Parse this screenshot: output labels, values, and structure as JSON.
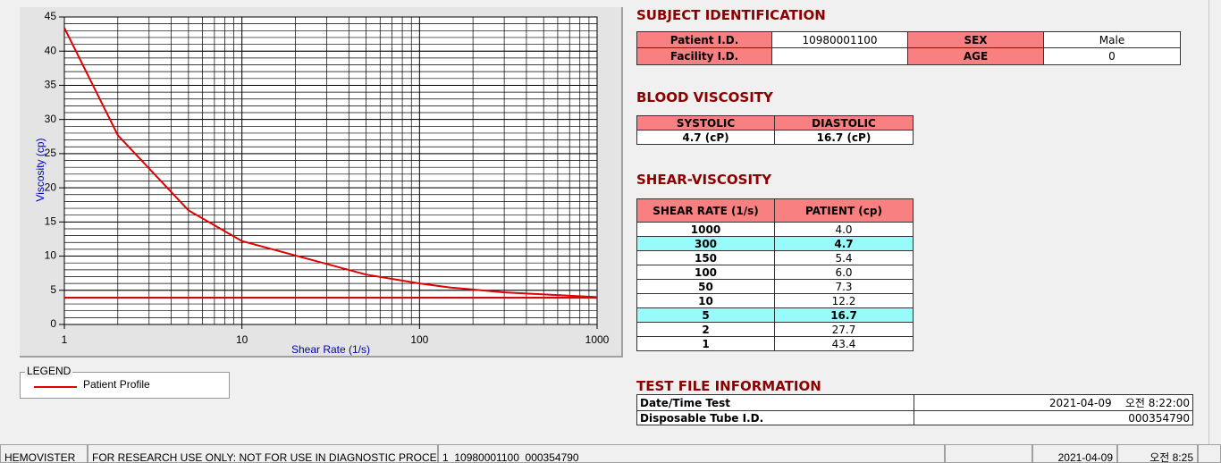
{
  "chart_data": {
    "type": "line",
    "x_label": "Shear Rate (1/s)",
    "y_label": "Viscosity (cp)",
    "log_x": true,
    "x": [
      1,
      2,
      5,
      10,
      50,
      100,
      150,
      300,
      1000
    ],
    "series": [
      {
        "name": "Patient Profile",
        "color": "#e00000",
        "values": [
          43.4,
          27.7,
          16.7,
          12.2,
          7.3,
          6.0,
          5.4,
          4.7,
          4.0
        ]
      }
    ],
    "horizontal_line": {
      "y": 3.9,
      "color": "#e00000"
    },
    "xlim": [
      1,
      1000
    ],
    "xticks": [
      1,
      10,
      100,
      1000
    ],
    "ylim": [
      0,
      45
    ],
    "yticks": [
      0,
      5,
      10,
      15,
      20,
      25,
      30,
      35,
      40,
      45
    ],
    "y_minor_step": 1,
    "grid": true,
    "legend_title": "LEGEND"
  },
  "subject_identification": {
    "title": "SUBJECT IDENTIFICATION",
    "fields": [
      {
        "label": "Patient I.D.",
        "value": "10980001100"
      },
      {
        "label": "SEX",
        "value": "Male"
      },
      {
        "label": "Facility I.D."
      },
      {
        "label": "AGE",
        "value": "0"
      }
    ]
  },
  "blood_viscosity": {
    "title": "BLOOD VISCOSITY",
    "headers": [
      "SYSTOLIC",
      "DIASTOLIC"
    ],
    "values": [
      "4.7 (cP)",
      "16.7 (cP)"
    ]
  },
  "shear_viscosity": {
    "title": "SHEAR-VISCOSITY",
    "headers": [
      "SHEAR RATE (1/s)",
      "PATIENT (cp)"
    ],
    "rows": [
      {
        "rate": "1000",
        "patient": "4.0"
      },
      {
        "rate": "300",
        "patient": "4.7",
        "highlight": true
      },
      {
        "rate": "150",
        "patient": "5.4"
      },
      {
        "rate": "100",
        "patient": "6.0"
      },
      {
        "rate": "50",
        "patient": "7.3"
      },
      {
        "rate": "10",
        "patient": "12.2"
      },
      {
        "rate": "5",
        "patient": "16.7",
        "highlight": true
      },
      {
        "rate": "2",
        "patient": "27.7"
      },
      {
        "rate": "1",
        "patient": "43.4"
      }
    ]
  },
  "test_file_information": {
    "title": "TEST FILE INFORMATION",
    "rows": [
      {
        "label": "Date/Time Test",
        "value": "2021-04-09    오전 8:22:00"
      },
      {
        "label": "Disposable Tube I.D.",
        "value": "000354790"
      }
    ]
  },
  "status_bar": [
    "HEMOVISTER",
    "FOR RESEARCH USE ONLY: NOT FOR USE IN DIAGNOSTIC PROCEDURES",
    "1  10980001100  000354790",
    "2021-04-09",
    "오전 8:25"
  ]
}
